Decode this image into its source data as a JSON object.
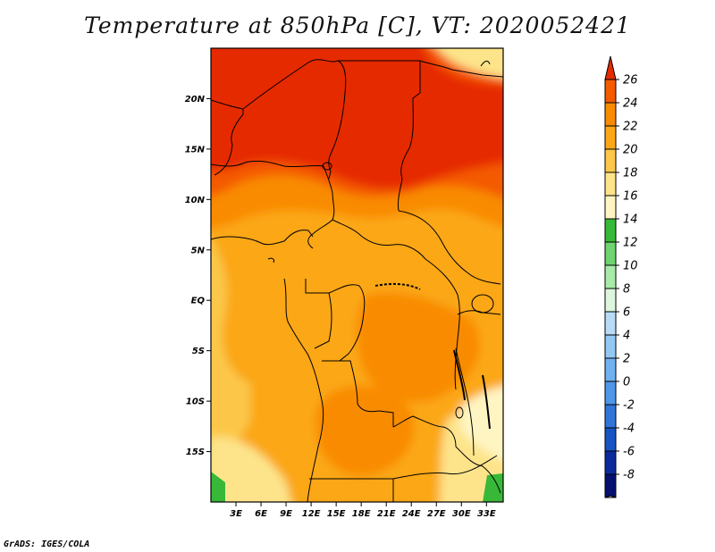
{
  "title": "Temperature at 850hPa [C], VT: 2020052421",
  "credit": "GrADS: IGES/COLA",
  "map": {
    "lon_range": [
      0,
      35
    ],
    "lat_range": [
      -20,
      25
    ],
    "lat_ticks": [
      {
        "value": 20,
        "label": "20N"
      },
      {
        "value": 15,
        "label": "15N"
      },
      {
        "value": 10,
        "label": "10N"
      },
      {
        "value": 5,
        "label": "5N"
      },
      {
        "value": 0,
        "label": "EQ"
      },
      {
        "value": -5,
        "label": "5S"
      },
      {
        "value": -10,
        "label": "10S"
      },
      {
        "value": -15,
        "label": "15S"
      }
    ],
    "lon_ticks": [
      {
        "value": 3,
        "label": "3E"
      },
      {
        "value": 6,
        "label": "6E"
      },
      {
        "value": 9,
        "label": "9E"
      },
      {
        "value": 12,
        "label": "12E"
      },
      {
        "value": 15,
        "label": "15E"
      },
      {
        "value": 18,
        "label": "18E"
      },
      {
        "value": 21,
        "label": "21E"
      },
      {
        "value": 24,
        "label": "24E"
      },
      {
        "value": 27,
        "label": "27E"
      },
      {
        "value": 30,
        "label": "30E"
      },
      {
        "value": 33,
        "label": "33E"
      }
    ]
  },
  "colorbar": {
    "levels": [
      "26",
      "24",
      "22",
      "20",
      "18",
      "16",
      "14",
      "12",
      "10",
      "8",
      "6",
      "4",
      "2",
      "0",
      "-2",
      "-4",
      "-6",
      "-8"
    ],
    "colors": [
      "#e62a00",
      "#f45a00",
      "#f98b00",
      "#fba717",
      "#fcc74a",
      "#fde48a",
      "#fff5c2",
      "#38b838",
      "#6fd36f",
      "#a8eba8",
      "#dcf5dc",
      "#b8dcf7",
      "#94c8f4",
      "#70b2ef",
      "#4f97e8",
      "#2f76d8",
      "#1653c3",
      "#0b2a9c",
      "#051070",
      "#d8d8f5"
    ]
  }
}
